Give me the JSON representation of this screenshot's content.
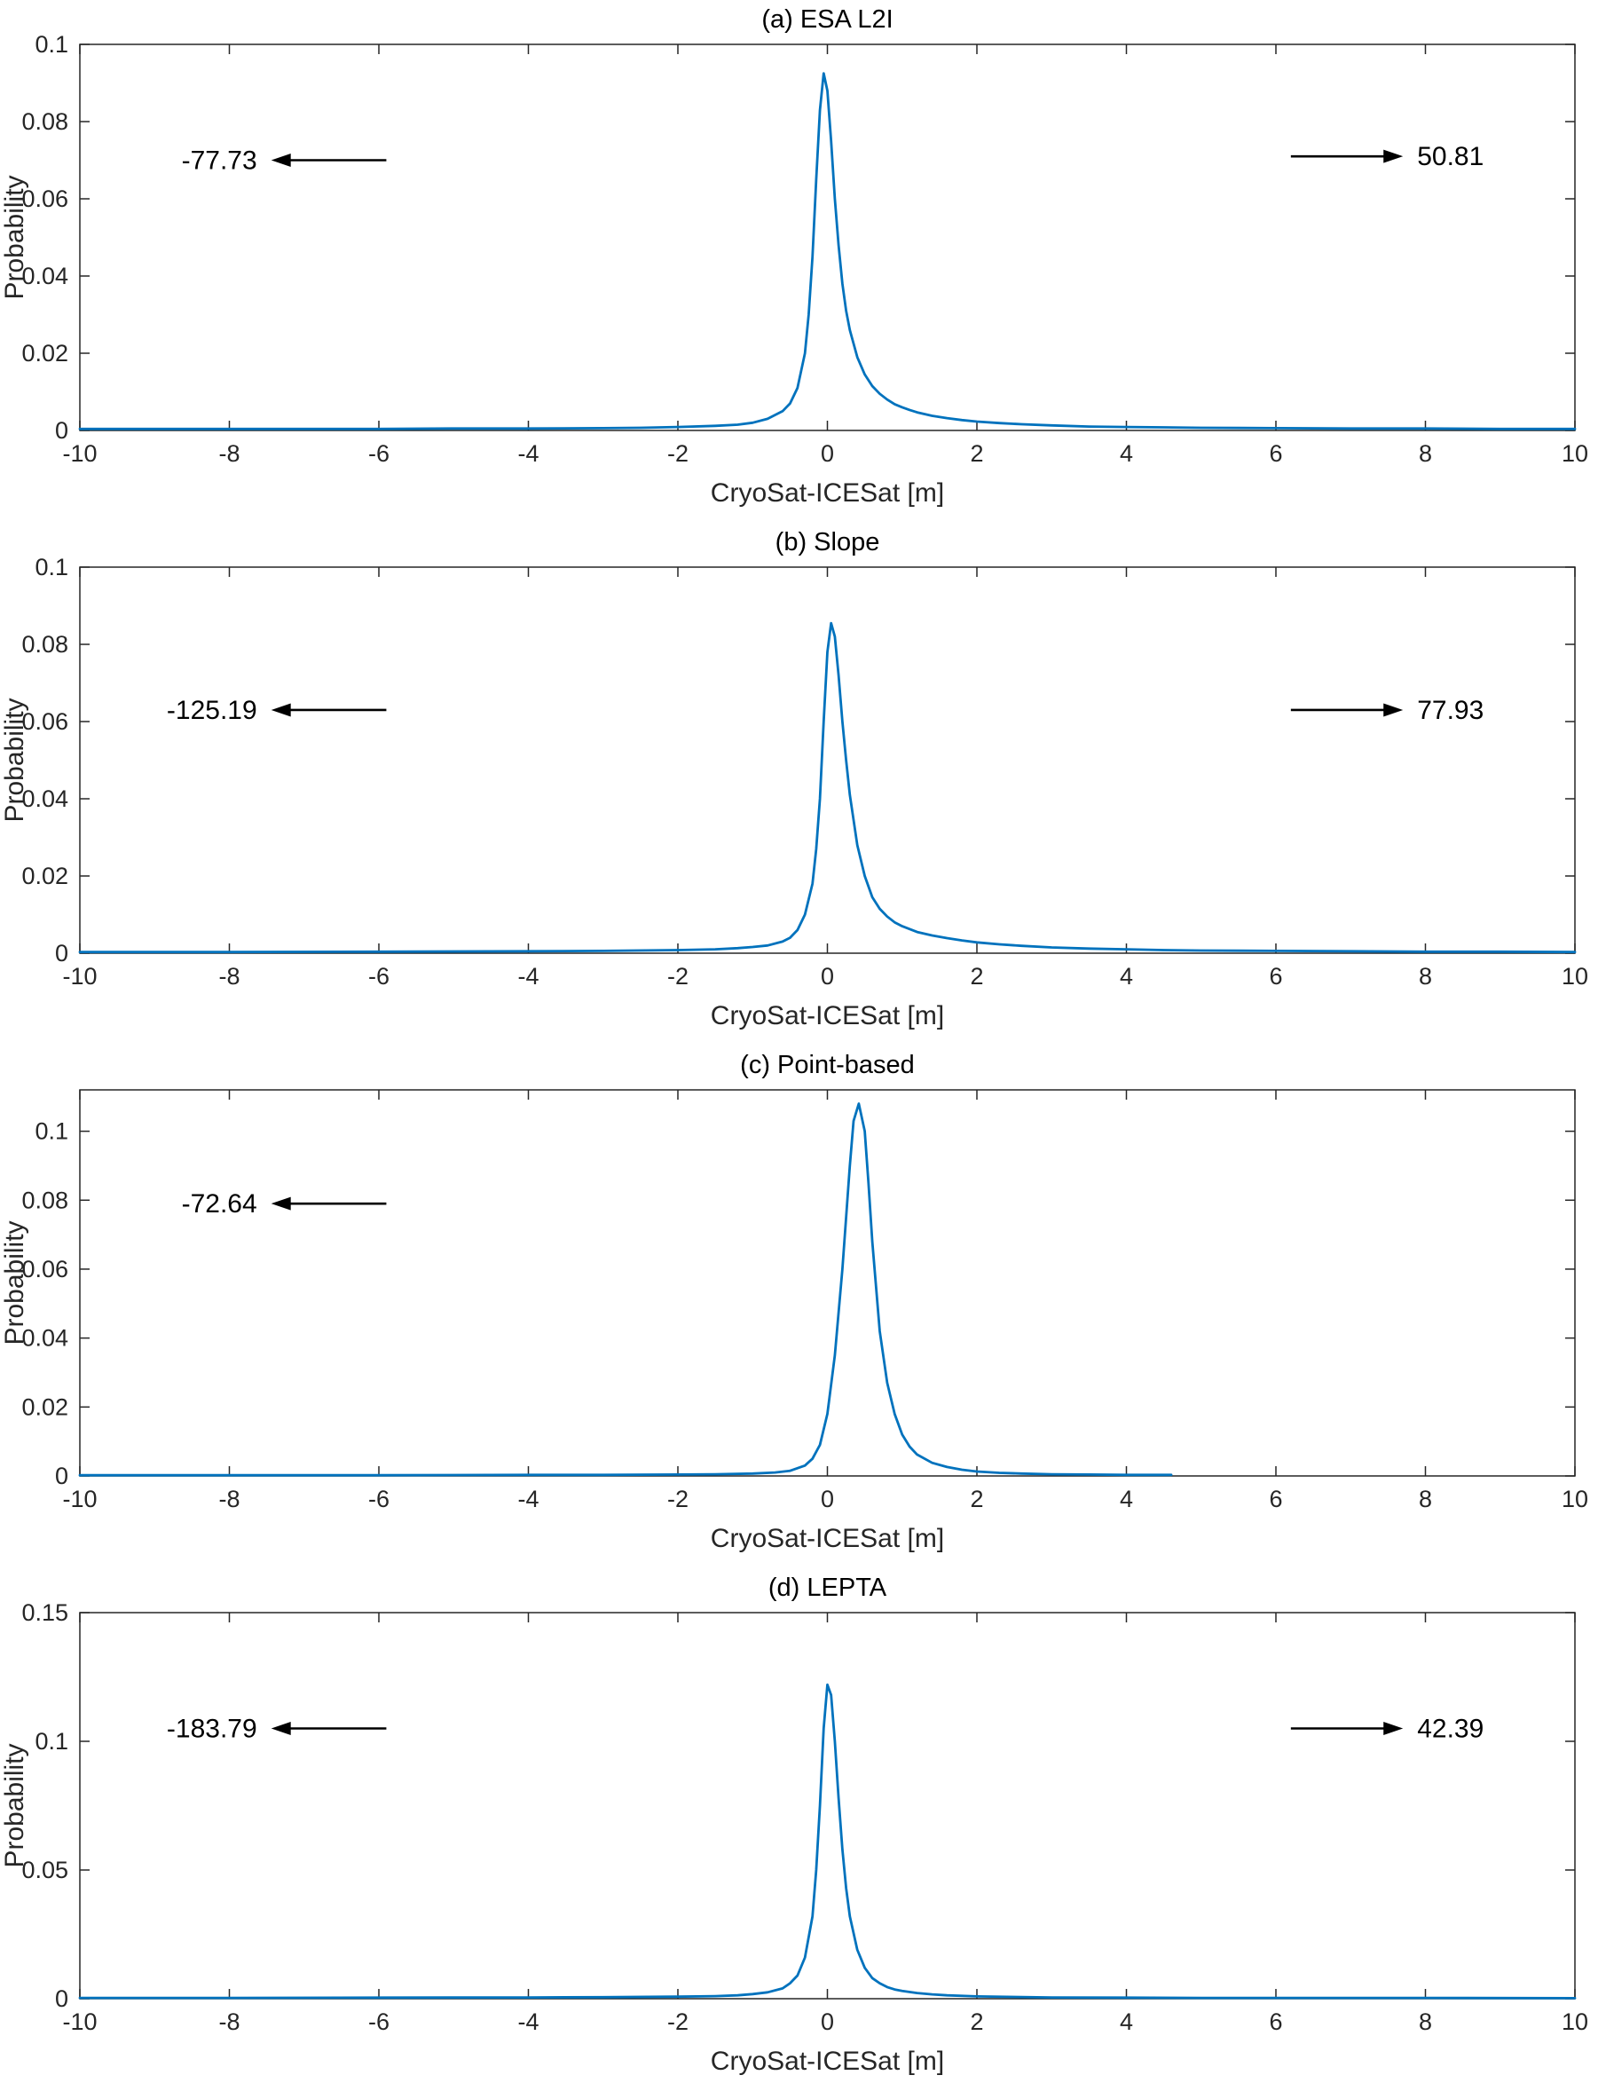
{
  "colors": {
    "line": "#0072BD",
    "axis": "#262626",
    "annotation": "#000000",
    "background": "#ffffff"
  },
  "chart_data": [
    {
      "type": "line",
      "title": "(a) ESA L2I",
      "xlabel": "CryoSat-ICESat [m]",
      "ylabel": "Probability",
      "xlim": [
        -10,
        10
      ],
      "ylim": [
        0,
        0.1
      ],
      "xticks": [
        -10,
        -8,
        -6,
        -4,
        -2,
        0,
        2,
        4,
        6,
        8,
        10
      ],
      "xtick_labels": [
        "-10",
        "-8",
        "-6",
        "-4",
        "-2",
        "0",
        "2",
        "4",
        "6",
        "8",
        "10"
      ],
      "yticks": [
        0,
        0.02,
        0.04,
        0.06,
        0.08,
        0.1
      ],
      "ytick_labels": [
        "0",
        "0.02",
        "0.04",
        "0.06",
        "0.08",
        "0.1"
      ],
      "line_color": "#0072BD",
      "legend": null,
      "grid": false,
      "peak": {
        "x": -0.05,
        "y": 0.0925
      },
      "annotations": [
        {
          "side": "left",
          "label": "-77.73",
          "y": 0.07
        },
        {
          "side": "right",
          "label": "50.81",
          "y": 0.071
        }
      ],
      "points": [
        [
          -10,
          0.0004
        ],
        [
          -8,
          0.0004
        ],
        [
          -6,
          0.0004
        ],
        [
          -5,
          0.0005
        ],
        [
          -4,
          0.0005
        ],
        [
          -3,
          0.0006
        ],
        [
          -2.5,
          0.0007
        ],
        [
          -2,
          0.0009
        ],
        [
          -1.5,
          0.0012
        ],
        [
          -1.2,
          0.0015
        ],
        [
          -1,
          0.002
        ],
        [
          -0.8,
          0.003
        ],
        [
          -0.6,
          0.005
        ],
        [
          -0.5,
          0.007
        ],
        [
          -0.4,
          0.011
        ],
        [
          -0.3,
          0.02
        ],
        [
          -0.25,
          0.03
        ],
        [
          -0.2,
          0.045
        ],
        [
          -0.15,
          0.065
        ],
        [
          -0.1,
          0.083
        ],
        [
          -0.05,
          0.0925
        ],
        [
          0,
          0.088
        ],
        [
          0.05,
          0.075
        ],
        [
          0.1,
          0.06
        ],
        [
          0.15,
          0.048
        ],
        [
          0.2,
          0.038
        ],
        [
          0.25,
          0.031
        ],
        [
          0.3,
          0.026
        ],
        [
          0.4,
          0.019
        ],
        [
          0.5,
          0.0145
        ],
        [
          0.6,
          0.0115
        ],
        [
          0.7,
          0.0095
        ],
        [
          0.8,
          0.008
        ],
        [
          0.9,
          0.0068
        ],
        [
          1,
          0.006
        ],
        [
          1.1,
          0.0053
        ],
        [
          1.2,
          0.0047
        ],
        [
          1.4,
          0.0038
        ],
        [
          1.6,
          0.0032
        ],
        [
          1.8,
          0.0027
        ],
        [
          2,
          0.0023
        ],
        [
          2.3,
          0.0019
        ],
        [
          2.6,
          0.0016
        ],
        [
          3,
          0.0013
        ],
        [
          3.5,
          0.001
        ],
        [
          4,
          0.0009
        ],
        [
          4.5,
          0.0008
        ],
        [
          5,
          0.0007
        ],
        [
          6,
          0.0006
        ],
        [
          7,
          0.0005
        ],
        [
          8,
          0.0005
        ],
        [
          9,
          0.0004
        ],
        [
          10,
          0.0004
        ]
      ]
    },
    {
      "type": "line",
      "title": "(b) Slope",
      "xlabel": "CryoSat-ICESat [m]",
      "ylabel": "Probability",
      "xlim": [
        -10,
        10
      ],
      "ylim": [
        0,
        0.1
      ],
      "xticks": [
        -10,
        -8,
        -6,
        -4,
        -2,
        0,
        2,
        4,
        6,
        8,
        10
      ],
      "xtick_labels": [
        "-10",
        "-8",
        "-6",
        "-4",
        "-2",
        "0",
        "2",
        "4",
        "6",
        "8",
        "10"
      ],
      "yticks": [
        0,
        0.02,
        0.04,
        0.06,
        0.08,
        0.1
      ],
      "ytick_labels": [
        "0",
        "0.02",
        "0.04",
        "0.06",
        "0.08",
        "0.1"
      ],
      "line_color": "#0072BD",
      "legend": null,
      "grid": false,
      "peak": {
        "x": 0.05,
        "y": 0.0855
      },
      "annotations": [
        {
          "side": "left",
          "label": "-125.19",
          "y": 0.063
        },
        {
          "side": "right",
          "label": "77.93",
          "y": 0.063
        }
      ],
      "points": [
        [
          -10,
          0.0003
        ],
        [
          -8,
          0.0003
        ],
        [
          -6,
          0.0004
        ],
        [
          -4,
          0.0005
        ],
        [
          -3,
          0.0006
        ],
        [
          -2,
          0.0008
        ],
        [
          -1.5,
          0.001
        ],
        [
          -1.2,
          0.0013
        ],
        [
          -1,
          0.0016
        ],
        [
          -0.8,
          0.002
        ],
        [
          -0.6,
          0.003
        ],
        [
          -0.5,
          0.004
        ],
        [
          -0.4,
          0.006
        ],
        [
          -0.3,
          0.01
        ],
        [
          -0.2,
          0.018
        ],
        [
          -0.15,
          0.027
        ],
        [
          -0.1,
          0.04
        ],
        [
          -0.05,
          0.06
        ],
        [
          0,
          0.078
        ],
        [
          0.05,
          0.0855
        ],
        [
          0.1,
          0.082
        ],
        [
          0.15,
          0.072
        ],
        [
          0.2,
          0.06
        ],
        [
          0.25,
          0.05
        ],
        [
          0.3,
          0.041
        ],
        [
          0.4,
          0.028
        ],
        [
          0.5,
          0.02
        ],
        [
          0.6,
          0.0145
        ],
        [
          0.7,
          0.0115
        ],
        [
          0.8,
          0.0095
        ],
        [
          0.9,
          0.008
        ],
        [
          1,
          0.007
        ],
        [
          1.2,
          0.0055
        ],
        [
          1.4,
          0.0046
        ],
        [
          1.6,
          0.0039
        ],
        [
          1.8,
          0.0033
        ],
        [
          2,
          0.0028
        ],
        [
          2.3,
          0.0023
        ],
        [
          2.6,
          0.0019
        ],
        [
          3,
          0.0015
        ],
        [
          3.5,
          0.0012
        ],
        [
          4,
          0.001
        ],
        [
          4.5,
          0.0008
        ],
        [
          5,
          0.0007
        ],
        [
          6,
          0.0006
        ],
        [
          7,
          0.0005
        ],
        [
          8,
          0.0004
        ],
        [
          9,
          0.0004
        ],
        [
          10,
          0.0003
        ]
      ]
    },
    {
      "type": "line",
      "title": "(c) Point-based",
      "xlabel": "CryoSat-ICESat [m]",
      "ylabel": "Probability",
      "xlim": [
        -10,
        10
      ],
      "ylim": [
        0,
        0.112
      ],
      "xticks": [
        -10,
        -8,
        -6,
        -4,
        -2,
        0,
        2,
        4,
        6,
        8,
        10
      ],
      "xtick_labels": [
        "-10",
        "-8",
        "-6",
        "-4",
        "-2",
        "0",
        "2",
        "4",
        "6",
        "8",
        "10"
      ],
      "yticks": [
        0,
        0.02,
        0.04,
        0.06,
        0.08,
        0.1
      ],
      "ytick_labels": [
        "0",
        "0.02",
        "0.04",
        "0.06",
        "0.08",
        "0.1"
      ],
      "line_color": "#0072BD",
      "legend": null,
      "grid": false,
      "peak": {
        "x": 0.42,
        "y": 0.108
      },
      "annotations": [
        {
          "side": "left",
          "label": "-72.64",
          "y": 0.079
        }
      ],
      "points": [
        [
          -10,
          0.0002
        ],
        [
          -8,
          0.0002
        ],
        [
          -6,
          0.0002
        ],
        [
          -4,
          0.0003
        ],
        [
          -3,
          0.0003
        ],
        [
          -2,
          0.0004
        ],
        [
          -1.5,
          0.0005
        ],
        [
          -1,
          0.0007
        ],
        [
          -0.7,
          0.001
        ],
        [
          -0.5,
          0.0015
        ],
        [
          -0.3,
          0.003
        ],
        [
          -0.2,
          0.005
        ],
        [
          -0.1,
          0.009
        ],
        [
          0,
          0.018
        ],
        [
          0.1,
          0.035
        ],
        [
          0.2,
          0.06
        ],
        [
          0.3,
          0.09
        ],
        [
          0.35,
          0.103
        ],
        [
          0.42,
          0.108
        ],
        [
          0.5,
          0.1
        ],
        [
          0.55,
          0.085
        ],
        [
          0.6,
          0.068
        ],
        [
          0.7,
          0.042
        ],
        [
          0.8,
          0.027
        ],
        [
          0.9,
          0.018
        ],
        [
          1,
          0.012
        ],
        [
          1.1,
          0.0085
        ],
        [
          1.2,
          0.0062
        ],
        [
          1.4,
          0.0038
        ],
        [
          1.6,
          0.0026
        ],
        [
          1.8,
          0.0018
        ],
        [
          2,
          0.0013
        ],
        [
          2.3,
          0.0009
        ],
        [
          2.6,
          0.0007
        ],
        [
          3,
          0.0005
        ],
        [
          3.5,
          0.0004
        ],
        [
          4,
          0.0003
        ],
        [
          4.6,
          0.0003
        ]
      ]
    },
    {
      "type": "line",
      "title": "(d) LEPTA",
      "xlabel": "CryoSat-ICESat [m]",
      "ylabel": "Probability",
      "xlim": [
        -10,
        10
      ],
      "ylim": [
        0,
        0.15
      ],
      "xticks": [
        -10,
        -8,
        -6,
        -4,
        -2,
        0,
        2,
        4,
        6,
        8,
        10
      ],
      "xtick_labels": [
        "-10",
        "-8",
        "-6",
        "-4",
        "-2",
        "0",
        "2",
        "4",
        "6",
        "8",
        "10"
      ],
      "yticks": [
        0,
        0.05,
        0.1,
        0.15
      ],
      "ytick_labels": [
        "0",
        "0.05",
        "0.1",
        "0.15"
      ],
      "line_color": "#0072BD",
      "legend": null,
      "grid": false,
      "peak": {
        "x": 0,
        "y": 0.122
      },
      "annotations": [
        {
          "side": "left",
          "label": "-183.79",
          "y": 0.105
        },
        {
          "side": "right",
          "label": "42.39",
          "y": 0.105
        }
      ],
      "points": [
        [
          -10,
          0.0003
        ],
        [
          -8,
          0.0003
        ],
        [
          -6,
          0.0004
        ],
        [
          -4,
          0.0005
        ],
        [
          -3,
          0.0006
        ],
        [
          -2,
          0.0008
        ],
        [
          -1.5,
          0.001
        ],
        [
          -1.2,
          0.0013
        ],
        [
          -1,
          0.0018
        ],
        [
          -0.8,
          0.0025
        ],
        [
          -0.6,
          0.004
        ],
        [
          -0.5,
          0.006
        ],
        [
          -0.4,
          0.009
        ],
        [
          -0.3,
          0.016
        ],
        [
          -0.2,
          0.032
        ],
        [
          -0.15,
          0.05
        ],
        [
          -0.1,
          0.075
        ],
        [
          -0.05,
          0.105
        ],
        [
          0,
          0.122
        ],
        [
          0.05,
          0.118
        ],
        [
          0.1,
          0.1
        ],
        [
          0.15,
          0.078
        ],
        [
          0.2,
          0.058
        ],
        [
          0.25,
          0.043
        ],
        [
          0.3,
          0.032
        ],
        [
          0.4,
          0.019
        ],
        [
          0.5,
          0.012
        ],
        [
          0.6,
          0.008
        ],
        [
          0.7,
          0.006
        ],
        [
          0.8,
          0.0045
        ],
        [
          0.9,
          0.0036
        ],
        [
          1,
          0.003
        ],
        [
          1.2,
          0.0022
        ],
        [
          1.4,
          0.0017
        ],
        [
          1.6,
          0.0013
        ],
        [
          2,
          0.0009
        ],
        [
          2.5,
          0.0007
        ],
        [
          3,
          0.0005
        ],
        [
          4,
          0.0004
        ],
        [
          5,
          0.0003
        ],
        [
          6,
          0.0003
        ],
        [
          8,
          0.0003
        ],
        [
          10,
          0.0002
        ]
      ]
    }
  ]
}
